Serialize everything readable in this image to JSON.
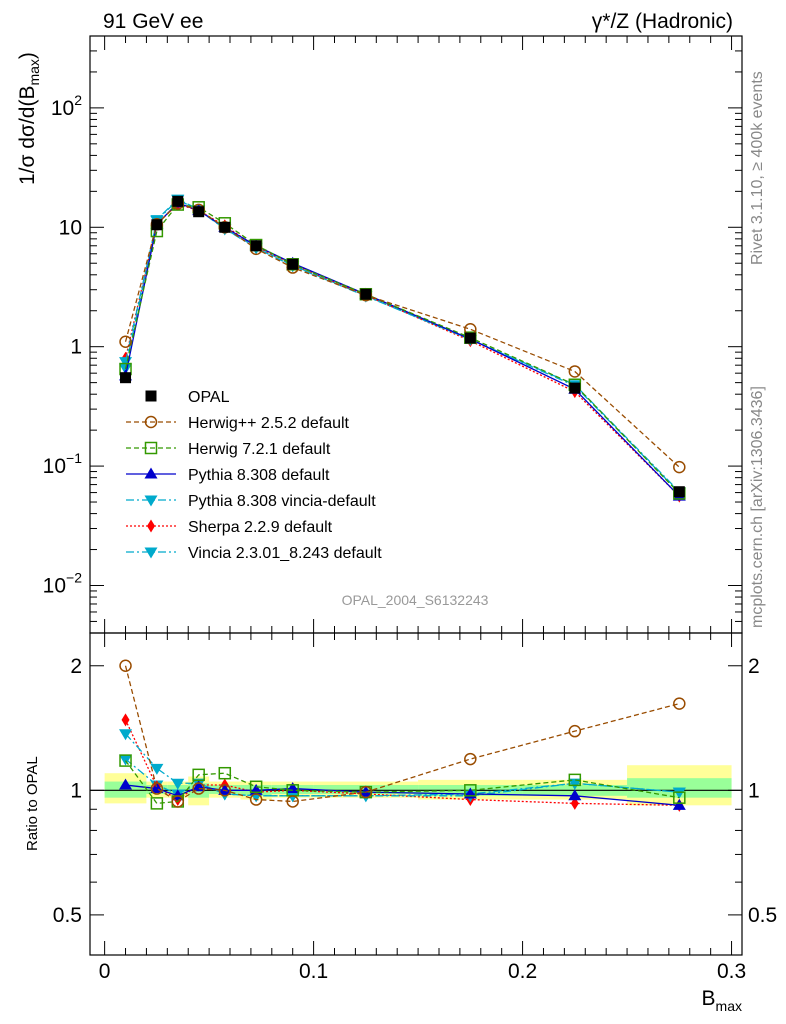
{
  "header": {
    "left": "91 GeV ee",
    "right": "γ*/Z (Hadronic)"
  },
  "side": {
    "rivet": "Rivet 3.1.10, ≥ 400k events",
    "mcplots": "mcplots.cern.ch [arXiv:1306.3436]"
  },
  "watermark": "OPAL_2004_S6132243",
  "colors": {
    "opal": "#000000",
    "herwigpp": "#994C00",
    "herwig7": "#339900",
    "pythia": "#0000CC",
    "pythia_vincia": "#00AACC",
    "sherpa": "#FF0000",
    "vincia": "#00AACC",
    "band_yellow": "#FFFF99",
    "band_green": "#99FF99"
  },
  "chart_data": [
    {
      "type": "line",
      "title": "",
      "ylabel_main": "1/σ dσ/d(B",
      "ylabel_sub": "max",
      "ylabel_close": ")",
      "yscale": "log",
      "ylim": [
        0.004,
        400
      ],
      "xlim": [
        -0.007,
        0.305
      ],
      "y_ticks": [
        {
          "v": 0.01,
          "base": "10",
          "exp": "−2"
        },
        {
          "v": 0.1,
          "base": "10",
          "exp": "−1"
        },
        {
          "v": 1,
          "base": "1",
          "exp": ""
        },
        {
          "v": 10,
          "base": "10",
          "exp": ""
        },
        {
          "v": 100,
          "base": "10",
          "exp": "2"
        }
      ],
      "series": [
        {
          "name": "OPAL",
          "key": "opal",
          "marker": "square",
          "dash": "none",
          "x": [
            0.01,
            0.025,
            0.035,
            0.045,
            0.0575,
            0.0725,
            0.09,
            0.125,
            0.175,
            0.225,
            0.275
          ],
          "y": [
            0.55,
            10.5,
            16.5,
            13.5,
            10.0,
            7.0,
            4.9,
            2.75,
            1.18,
            0.45,
            0.061
          ]
        },
        {
          "name": "Herwig++ 2.5.2 default",
          "key": "herwigpp",
          "marker": "circle-open",
          "dash": "5,3",
          "x": [
            0.01,
            0.025,
            0.035,
            0.045,
            0.0575,
            0.0725,
            0.09,
            0.125,
            0.175,
            0.225,
            0.275
          ],
          "y": [
            1.1,
            10.6,
            15.8,
            14.0,
            10.0,
            6.6,
            4.6,
            2.7,
            1.4,
            0.62,
            0.098
          ]
        },
        {
          "name": "Herwig 7.2.1 default",
          "key": "herwig7",
          "marker": "square-open",
          "dash": "5,3",
          "x": [
            0.01,
            0.025,
            0.035,
            0.045,
            0.0575,
            0.0725,
            0.09,
            0.125,
            0.175,
            0.225,
            0.275
          ],
          "y": [
            0.65,
            9.3,
            15.5,
            14.7,
            10.8,
            7.1,
            4.9,
            2.75,
            1.19,
            0.48,
            0.059
          ]
        },
        {
          "name": "Pythia 8.308 default",
          "key": "pythia",
          "marker": "triangle-up",
          "dash": "none",
          "x": [
            0.01,
            0.025,
            0.035,
            0.045,
            0.0575,
            0.0725,
            0.09,
            0.125,
            0.175,
            0.225,
            0.275
          ],
          "y": [
            0.57,
            10.6,
            16.0,
            13.8,
            10.0,
            7.0,
            5.0,
            2.75,
            1.16,
            0.44,
            0.056
          ]
        },
        {
          "name": "Pythia 8.308 vincia-default",
          "key": "pythia_vincia",
          "marker": "triangle-down",
          "dash": "8,3,2,3",
          "x": [
            0.01,
            0.025,
            0.035,
            0.045,
            0.0575,
            0.0725,
            0.09,
            0.125,
            0.175,
            0.225,
            0.275
          ],
          "y": [
            0.75,
            11.4,
            17.0,
            13.9,
            9.7,
            6.7,
            4.75,
            2.65,
            1.15,
            0.47,
            0.06
          ]
        },
        {
          "name": "Sherpa 2.2.9 default",
          "key": "sherpa",
          "marker": "diamond",
          "dash": "2,2",
          "x": [
            0.01,
            0.025,
            0.035,
            0.045,
            0.0575,
            0.0725,
            0.09,
            0.125,
            0.175,
            0.225,
            0.275
          ],
          "y": [
            0.8,
            10.7,
            15.6,
            13.8,
            10.3,
            6.9,
            4.9,
            2.7,
            1.12,
            0.42,
            0.056
          ]
        },
        {
          "name": "Vincia 2.3.01_8.243 default",
          "key": "vincia",
          "marker": "triangle-down",
          "dash": "8,3,2,3",
          "x": [
            0.01,
            0.025,
            0.035,
            0.045,
            0.0575,
            0.0725,
            0.09,
            0.125,
            0.175,
            0.225,
            0.275
          ],
          "y": [
            0.66,
            11.6,
            17.2,
            14.1,
            9.7,
            6.8,
            4.8,
            2.67,
            1.15,
            0.48,
            0.061
          ]
        }
      ]
    },
    {
      "type": "line",
      "title": "",
      "ylabel": "Ratio to OPAL",
      "xlabel_main": "B",
      "xlabel_sub": "max",
      "yscale": "log",
      "ylim": [
        0.4,
        2.4
      ],
      "xlim": [
        -0.007,
        0.305
      ],
      "x_ticks": [
        {
          "v": 0,
          "label": "0"
        },
        {
          "v": 0.1,
          "label": "0.1"
        },
        {
          "v": 0.2,
          "label": "0.2"
        },
        {
          "v": 0.3,
          "label": "0.3"
        }
      ],
      "y_ticks": [
        {
          "v": 0.5,
          "label": "0.5"
        },
        {
          "v": 1,
          "label": "1"
        },
        {
          "v": 2,
          "label": "2"
        }
      ],
      "bins": [
        0,
        0.02,
        0.03,
        0.04,
        0.05,
        0.065,
        0.08,
        0.1,
        0.15,
        0.2,
        0.25,
        0.3
      ],
      "band_yellow": [
        [
          0.93,
          1.1
        ],
        [
          0.96,
          1.05
        ],
        [
          0.96,
          1.05
        ],
        [
          0.92,
          1.08
        ],
        [
          0.96,
          1.05
        ],
        [
          0.95,
          1.05
        ],
        [
          0.96,
          1.05
        ],
        [
          0.96,
          1.05
        ],
        [
          0.95,
          1.06
        ],
        [
          0.95,
          1.06
        ],
        [
          0.92,
          1.15
        ]
      ],
      "band_green": [
        [
          0.96,
          1.05
        ],
        [
          0.98,
          1.03
        ],
        [
          0.98,
          1.03
        ],
        [
          0.96,
          1.04
        ],
        [
          0.98,
          1.03
        ],
        [
          0.97,
          1.03
        ],
        [
          0.98,
          1.03
        ],
        [
          0.98,
          1.03
        ],
        [
          0.97,
          1.03
        ],
        [
          0.97,
          1.03
        ],
        [
          0.96,
          1.07
        ]
      ],
      "series": [
        {
          "key": "herwigpp",
          "marker": "circle-open",
          "dash": "5,3",
          "x": [
            0.01,
            0.025,
            0.035,
            0.045,
            0.0575,
            0.0725,
            0.09,
            0.125,
            0.175,
            0.225,
            0.275
          ],
          "y": [
            2.0,
            1.01,
            0.94,
            1.01,
            1.0,
            0.95,
            0.94,
            0.99,
            1.19,
            1.39,
            1.62
          ]
        },
        {
          "key": "herwig7",
          "marker": "square-open",
          "dash": "5,3",
          "x": [
            0.01,
            0.025,
            0.035,
            0.045,
            0.0575,
            0.0725,
            0.09,
            0.125,
            0.175,
            0.225,
            0.275
          ],
          "y": [
            1.18,
            0.93,
            0.94,
            1.09,
            1.1,
            1.02,
            1.0,
            0.99,
            1.0,
            1.06,
            0.96
          ]
        },
        {
          "key": "pythia",
          "marker": "triangle-up",
          "dash": "none",
          "x": [
            0.01,
            0.025,
            0.035,
            0.045,
            0.0575,
            0.0725,
            0.09,
            0.125,
            0.175,
            0.225,
            0.275
          ],
          "y": [
            1.03,
            1.01,
            0.97,
            1.02,
            1.0,
            1.0,
            1.01,
            0.99,
            0.98,
            0.97,
            0.92
          ]
        },
        {
          "key": "pythia_vincia",
          "marker": "triangle-down",
          "dash": "8,3,2,3",
          "x": [
            0.01,
            0.025,
            0.035,
            0.045,
            0.0575,
            0.0725,
            0.09,
            0.125,
            0.175,
            0.225,
            0.275
          ],
          "y": [
            1.37,
            1.13,
            1.04,
            1.04,
            0.98,
            0.97,
            0.97,
            0.97,
            0.97,
            1.04,
            0.99
          ]
        },
        {
          "key": "sherpa",
          "marker": "diamond",
          "dash": "2,2",
          "x": [
            0.01,
            0.025,
            0.035,
            0.045,
            0.0575,
            0.0725,
            0.09,
            0.125,
            0.175,
            0.225,
            0.275
          ],
          "y": [
            1.48,
            1.02,
            0.95,
            1.03,
            1.03,
            0.99,
            1.0,
            0.98,
            0.95,
            0.93,
            0.92
          ]
        },
        {
          "key": "vincia",
          "marker": "triangle-down",
          "dash": "8,3,2,3",
          "x": [
            0.01,
            0.025,
            0.035,
            0.045,
            0.0575,
            0.0725,
            0.09,
            0.125,
            0.175,
            0.225,
            0.275
          ],
          "y": [
            1.19,
            1.03,
            0.98,
            1.04,
            0.98,
            0.97,
            0.97,
            0.97,
            0.98,
            1.04,
            0.99
          ]
        }
      ]
    }
  ]
}
